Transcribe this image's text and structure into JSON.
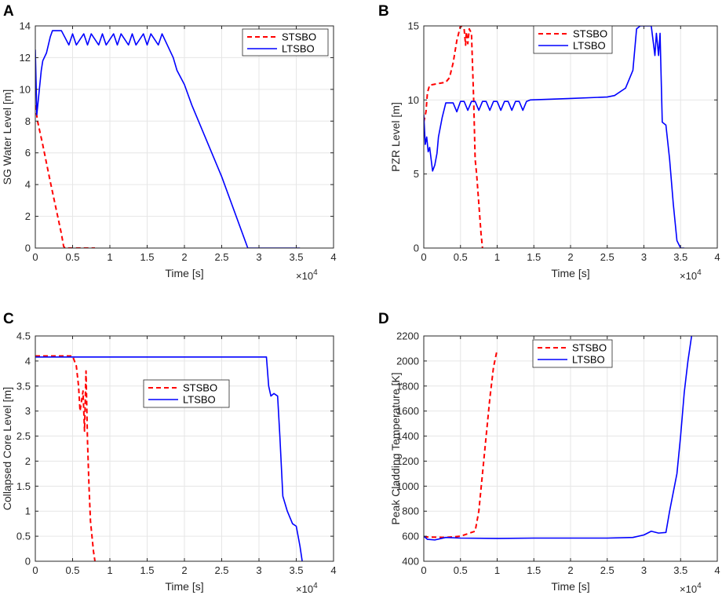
{
  "colors": {
    "stsbo": "#ff0000",
    "ltsbo": "#0000ff",
    "grid": "#e6e6e6",
    "axis": "#262626"
  },
  "chart_data": [
    {
      "id": "A",
      "type": "line",
      "panel_label": "A",
      "title": "",
      "xlabel": "Time [s]",
      "ylabel": "SG Water Level [m]",
      "x_exponent": "×10",
      "x_exponent_power": "4",
      "xlim": [
        0,
        4
      ],
      "ylim": [
        0,
        14
      ],
      "xticks": [
        0,
        0.5,
        1,
        1.5,
        2,
        2.5,
        3,
        3.5,
        4
      ],
      "xtick_labels": [
        "0",
        "0.5",
        "1",
        "1.5",
        "2",
        "2.5",
        "3",
        "3.5",
        "4"
      ],
      "yticks": [
        0,
        2,
        4,
        6,
        8,
        10,
        12,
        14
      ],
      "ytick_labels": [
        "0",
        "2",
        "4",
        "6",
        "8",
        "10",
        "12",
        "14"
      ],
      "grid": true,
      "legend_position": "top-right",
      "series": [
        {
          "name": "STSBO",
          "style": "dashed",
          "x": [
            0.0,
            0.03,
            0.1,
            0.2,
            0.3,
            0.35,
            0.38,
            0.4,
            0.5,
            0.7,
            0.8
          ],
          "y": [
            9.0,
            8.0,
            6.5,
            4.2,
            2.0,
            0.9,
            0.1,
            0.0,
            0.0,
            0.0,
            0.0
          ]
        },
        {
          "name": "LTSBO",
          "style": "solid",
          "x": [
            0.0,
            0.01,
            0.02,
            0.05,
            0.08,
            0.1,
            0.15,
            0.2,
            0.23,
            0.3,
            0.35,
            0.45,
            0.5,
            0.55,
            0.65,
            0.7,
            0.75,
            0.85,
            0.9,
            0.95,
            1.05,
            1.1,
            1.15,
            1.25,
            1.3,
            1.35,
            1.45,
            1.5,
            1.55,
            1.65,
            1.7,
            1.75,
            1.85,
            1.9,
            2.0,
            2.1,
            2.5,
            2.85,
            3.55
          ],
          "y": [
            12.5,
            10.5,
            8.4,
            9.8,
            11.2,
            11.8,
            12.3,
            13.3,
            13.7,
            13.7,
            13.7,
            12.8,
            13.5,
            12.8,
            13.5,
            12.8,
            13.5,
            12.8,
            13.5,
            12.8,
            13.5,
            12.8,
            13.5,
            12.8,
            13.5,
            12.8,
            13.5,
            12.8,
            13.5,
            12.8,
            13.5,
            13.0,
            12.0,
            11.2,
            10.3,
            9.0,
            4.5,
            0.0,
            0.0
          ]
        }
      ]
    },
    {
      "id": "B",
      "type": "line",
      "panel_label": "B",
      "title": "",
      "xlabel": "Time [s]",
      "ylabel": "PZR Level [m]",
      "x_exponent": "×10",
      "x_exponent_power": "4",
      "xlim": [
        0,
        4
      ],
      "ylim": [
        0,
        15
      ],
      "xticks": [
        0,
        0.5,
        1,
        1.5,
        2,
        2.5,
        3,
        3.5,
        4
      ],
      "xtick_labels": [
        "0",
        "0.5",
        "1",
        "1.5",
        "2",
        "2.5",
        "3",
        "3.5",
        "4"
      ],
      "yticks": [
        0,
        5,
        10,
        15
      ],
      "ytick_labels": [
        "0",
        "5",
        "10",
        "15"
      ],
      "grid": true,
      "legend_position": "top-right",
      "series": [
        {
          "name": "STSBO",
          "style": "dashed",
          "x": [
            0.0,
            0.03,
            0.05,
            0.08,
            0.3,
            0.35,
            0.4,
            0.45,
            0.5,
            0.55,
            0.57,
            0.58,
            0.6,
            0.62,
            0.65,
            0.68,
            0.7,
            0.72,
            0.75,
            0.78,
            0.8
          ],
          "y": [
            8.5,
            9.2,
            10.5,
            11.0,
            11.2,
            11.5,
            12.5,
            14.0,
            15.0,
            14.8,
            13.7,
            14.6,
            13.8,
            14.8,
            14.5,
            10.0,
            6.0,
            5.0,
            3.0,
            1.0,
            0.0
          ]
        },
        {
          "name": "LTSBO",
          "style": "solid",
          "x": [
            0.0,
            0.02,
            0.04,
            0.06,
            0.08,
            0.1,
            0.12,
            0.15,
            0.18,
            0.2,
            0.25,
            0.3,
            0.35,
            0.4,
            0.45,
            0.5,
            0.55,
            0.6,
            0.65,
            0.7,
            0.75,
            0.8,
            0.85,
            0.9,
            0.95,
            1.0,
            1.05,
            1.1,
            1.15,
            1.2,
            1.25,
            1.3,
            1.35,
            1.4,
            1.45,
            2.0,
            2.5,
            2.6,
            2.75,
            2.85,
            2.9,
            2.95,
            3.0,
            3.1,
            3.15,
            3.17,
            3.2,
            3.22,
            3.25,
            3.3,
            3.35,
            3.4,
            3.45,
            3.5,
            3.55
          ],
          "y": [
            9.0,
            7.0,
            7.5,
            6.5,
            6.8,
            6.0,
            5.2,
            5.6,
            6.4,
            7.5,
            8.8,
            9.8,
            9.8,
            9.8,
            9.2,
            9.9,
            9.9,
            9.3,
            9.9,
            9.9,
            9.3,
            9.9,
            9.9,
            9.3,
            9.9,
            9.9,
            9.3,
            9.9,
            9.9,
            9.3,
            9.9,
            9.9,
            9.3,
            9.9,
            10.0,
            10.1,
            10.2,
            10.3,
            10.8,
            12.0,
            14.8,
            15.0,
            15.0,
            15.0,
            13.0,
            14.5,
            13.0,
            14.5,
            8.5,
            8.3,
            6.0,
            3.0,
            0.5,
            0.0,
            0.0
          ]
        }
      ]
    },
    {
      "id": "C",
      "type": "line",
      "panel_label": "C",
      "title": "",
      "xlabel": "Time [s]",
      "ylabel": "Collapsed Core Level [m]",
      "x_exponent": "×10",
      "x_exponent_power": "4",
      "xlim": [
        0,
        4
      ],
      "ylim": [
        0,
        4.5
      ],
      "xticks": [
        0,
        0.5,
        1,
        1.5,
        2,
        2.5,
        3,
        3.5,
        4
      ],
      "xtick_labels": [
        "0",
        "0.5",
        "1",
        "1.5",
        "2",
        "2.5",
        "3",
        "3.5",
        "4"
      ],
      "yticks": [
        0,
        0.5,
        1,
        1.5,
        2,
        2.5,
        3,
        3.5,
        4,
        4.5
      ],
      "ytick_labels": [
        "0",
        "0.5",
        "1",
        "1.5",
        "2",
        "2.5",
        "3",
        "3.5",
        "4",
        "4.5"
      ],
      "grid": true,
      "legend_position": "center",
      "series": [
        {
          "name": "STSBO",
          "style": "dashed",
          "x": [
            0.0,
            0.5,
            0.55,
            0.58,
            0.6,
            0.62,
            0.64,
            0.66,
            0.68,
            0.7,
            0.72,
            0.74,
            0.76,
            0.78,
            0.8
          ],
          "y": [
            4.1,
            4.1,
            3.9,
            3.5,
            3.0,
            3.2,
            3.4,
            2.6,
            3.8,
            2.4,
            1.5,
            0.8,
            0.5,
            0.2,
            0.0
          ]
        },
        {
          "name": "LTSBO",
          "style": "solid",
          "x": [
            0.0,
            3.1,
            3.13,
            3.16,
            3.2,
            3.25,
            3.28,
            3.32,
            3.38,
            3.45,
            3.5,
            3.55,
            3.58
          ],
          "y": [
            4.08,
            4.08,
            3.5,
            3.3,
            3.35,
            3.3,
            2.5,
            1.3,
            1.0,
            0.75,
            0.7,
            0.3,
            0.0
          ]
        }
      ]
    },
    {
      "id": "D",
      "type": "line",
      "panel_label": "D",
      "title": "",
      "xlabel": "Time [s]",
      "ylabel": "Peak Cladding Temperature [K]",
      "x_exponent": "×10",
      "x_exponent_power": "4",
      "xlim": [
        0,
        4
      ],
      "ylim": [
        400,
        2200
      ],
      "xticks": [
        0,
        0.5,
        1,
        1.5,
        2,
        2.5,
        3,
        3.5,
        4
      ],
      "xtick_labels": [
        "0",
        "0.5",
        "1",
        "1.5",
        "2",
        "2.5",
        "3",
        "3.5",
        "4"
      ],
      "yticks": [
        400,
        600,
        800,
        1000,
        1200,
        1400,
        1600,
        1800,
        2000,
        2200
      ],
      "ytick_labels": [
        "400",
        "600",
        "800",
        "1000",
        "1200",
        "1400",
        "1600",
        "1800",
        "2000",
        "2200"
      ],
      "grid": true,
      "legend_position": "top-center",
      "series": [
        {
          "name": "STSBO",
          "style": "dashed",
          "x": [
            0.0,
            0.3,
            0.5,
            0.7,
            0.75,
            0.8,
            0.85,
            0.9,
            0.95,
            1.0
          ],
          "y": [
            595,
            590,
            600,
            640,
            800,
            1100,
            1400,
            1700,
            1950,
            2090
          ]
        },
        {
          "name": "LTSBO",
          "style": "solid",
          "x": [
            0.0,
            0.05,
            0.15,
            0.3,
            0.5,
            1.0,
            1.5,
            2.0,
            2.5,
            2.85,
            3.0,
            3.1,
            3.2,
            3.3,
            3.35,
            3.4,
            3.45,
            3.5,
            3.55,
            3.6,
            3.65
          ],
          "y": [
            600,
            575,
            570,
            590,
            585,
            582,
            585,
            585,
            585,
            590,
            610,
            640,
            625,
            630,
            800,
            950,
            1100,
            1400,
            1750,
            2000,
            2200
          ]
        }
      ]
    }
  ]
}
